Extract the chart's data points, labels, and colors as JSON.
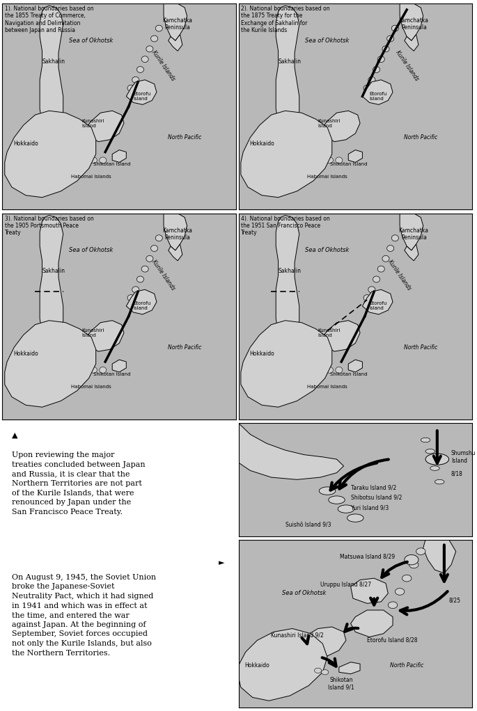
{
  "fig_w": 6.85,
  "fig_h": 10.22,
  "dpi": 100,
  "bg_white": "#ffffff",
  "map_bg": "#b8b8b8",
  "land_color": "#d0d0d0",
  "land_edge": "#000000",
  "map_titles": [
    "1). National boundaries based on\nthe 1855 Treaty of Commerce,\nNavigation and Delimitation\nbetween Japan and Russia",
    "2). National boundaries based on\nthe 1875 Treaty for the\nExchange of Sakhalin for\nthe Kurile Islands",
    "3). National boundaries based on\nthe 1905 Portsmouth Peace\nTreaty",
    "4). National boundaries based on\nthe 1951 San Francisco Peace\nTreaty"
  ],
  "para1_sym": "▲",
  "para1_text": "Upon reviewing the major\ntreaties concluded between Japan\nand Russia, it is clear that the\nNorthern Territories are not part\nof the Kurile Islands, that were\nrenounced by Japan under the\nSan Francisco Peace Treaty.",
  "para2_sym": "►",
  "para2_text": "On August 9, 1945, the Soviet Union\nbroke the Japanese-Soviet\nNeutrality Pact, which it had signed\nin 1941 and which was in effect at\nthe time, and entered the war\nagainst Japan. At the beginning of\nSeptember, Soviet forces occupied\nnot only the Kurile Islands, but also\nthe Northern Territories."
}
